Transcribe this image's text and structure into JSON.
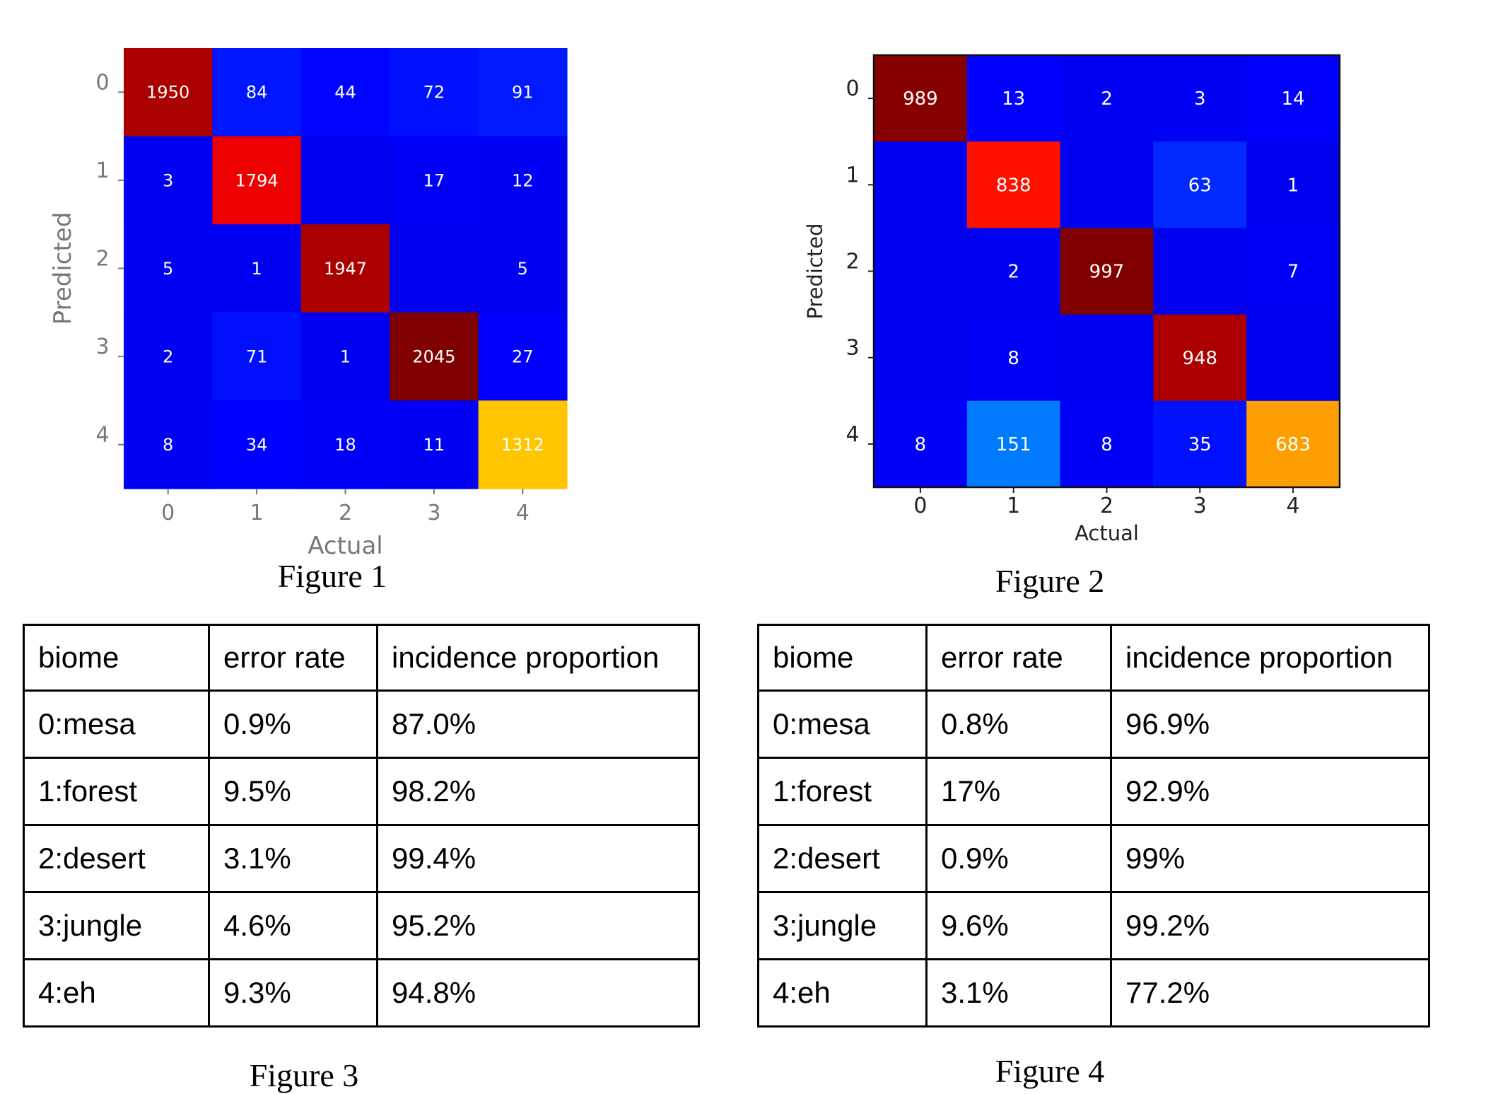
{
  "chart_data": [
    {
      "type": "heatmap",
      "caption": "Figure 1",
      "xlabel": "Actual",
      "ylabel": "Predicted",
      "x_ticks": [
        "0",
        "1",
        "2",
        "3",
        "4"
      ],
      "y_ticks": [
        "0",
        "1",
        "2",
        "3",
        "4"
      ],
      "colormap": "jet",
      "vmax": 2045,
      "matrix": [
        [
          1950,
          84,
          44,
          72,
          91
        ],
        [
          3,
          1794,
          null,
          17,
          12
        ],
        [
          5,
          1,
          1947,
          null,
          5
        ],
        [
          2,
          71,
          1,
          2045,
          27
        ],
        [
          8,
          34,
          18,
          11,
          1312
        ]
      ]
    },
    {
      "type": "heatmap",
      "caption": "Figure 2",
      "xlabel": "Actual",
      "ylabel": "Predicted",
      "x_ticks": [
        "0",
        "1",
        "2",
        "3",
        "4"
      ],
      "y_ticks": [
        "0",
        "1",
        "2",
        "3",
        "4"
      ],
      "colormap": "jet",
      "vmax": 997,
      "matrix": [
        [
          989,
          13,
          2,
          3,
          14
        ],
        [
          null,
          838,
          null,
          63,
          1
        ],
        [
          null,
          2,
          997,
          null,
          7
        ],
        [
          null,
          8,
          null,
          948,
          null
        ],
        [
          8,
          151,
          8,
          35,
          683
        ]
      ]
    }
  ],
  "tables": [
    {
      "caption": "Figure 3",
      "headers": [
        "biome",
        "error rate",
        "incidence proportion"
      ],
      "rows": [
        [
          "0:mesa",
          "0.9%",
          "87.0%"
        ],
        [
          "1:forest",
          "9.5%",
          "98.2%"
        ],
        [
          "2:desert",
          "3.1%",
          "99.4%"
        ],
        [
          "3:jungle",
          "4.6%",
          "95.2%"
        ],
        [
          "4:eh",
          "9.3%",
          "94.8%"
        ]
      ]
    },
    {
      "caption": "Figure 4",
      "headers": [
        "biome",
        "error rate",
        "incidence proportion"
      ],
      "rows": [
        [
          "0:mesa",
          "0.8%",
          "96.9%"
        ],
        [
          "1:forest",
          "17%",
          "92.9%"
        ],
        [
          "2:desert",
          "0.9%",
          "99%"
        ],
        [
          "3:jungle",
          "9.6%",
          "99.2%"
        ],
        [
          "4:eh",
          "3.1%",
          "77.2%"
        ]
      ]
    }
  ]
}
